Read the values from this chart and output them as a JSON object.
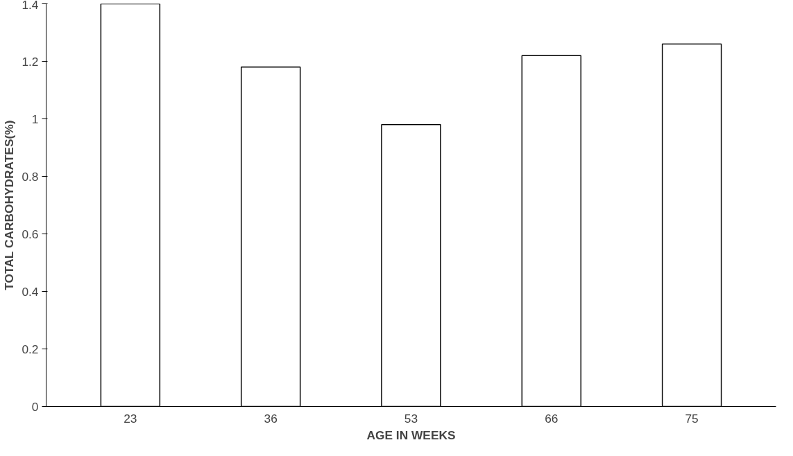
{
  "chart_data": {
    "type": "bar",
    "xlabel": "AGE IN WEEKS",
    "ylabel": "TOTAL CARBOHYDRATES(%)",
    "categories": [
      "23",
      "36",
      "53",
      "66",
      "75"
    ],
    "values": [
      1.4,
      1.18,
      0.98,
      1.22,
      1.26
    ],
    "color": "#ffffff",
    "ylim": [
      0,
      1.4
    ],
    "yticks": [
      0,
      0.2,
      0.4,
      0.6,
      0.8,
      1,
      1.2,
      1.4
    ],
    "grid": false
  }
}
